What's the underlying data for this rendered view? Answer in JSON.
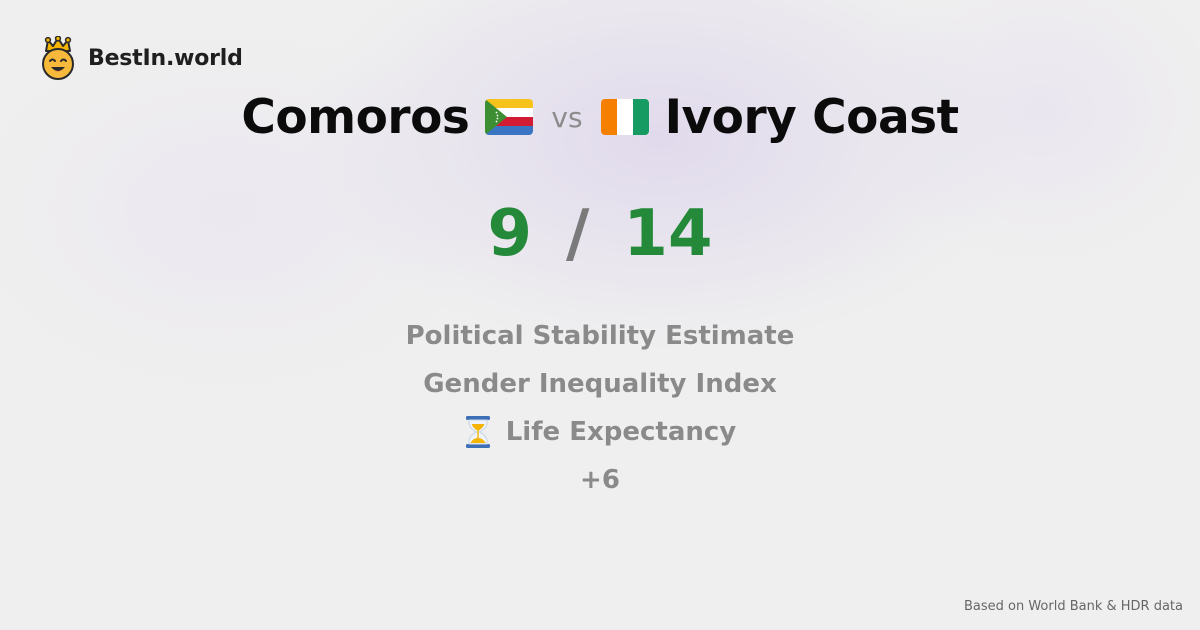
{
  "brand": {
    "name": "BestIn.world",
    "logo_icon": "crowned-smiley-icon"
  },
  "comparison": {
    "left_country": "Comoros",
    "left_flag_icon": "comoros-flag-icon",
    "vs_label": "vs",
    "right_country": "Ivory Coast",
    "right_flag_icon": "ivory-coast-flag-icon"
  },
  "score": {
    "left": "9",
    "separator": "/",
    "right": "14",
    "color": "#248a3a"
  },
  "metrics": [
    {
      "label": "Political Stability Estimate"
    },
    {
      "label": "Gender Inequality Index"
    },
    {
      "label": "Life Expectancy",
      "icon": "hourglass-icon"
    },
    {
      "label": "+6"
    }
  ],
  "footer": {
    "source": "Based on World Bank & HDR data"
  }
}
